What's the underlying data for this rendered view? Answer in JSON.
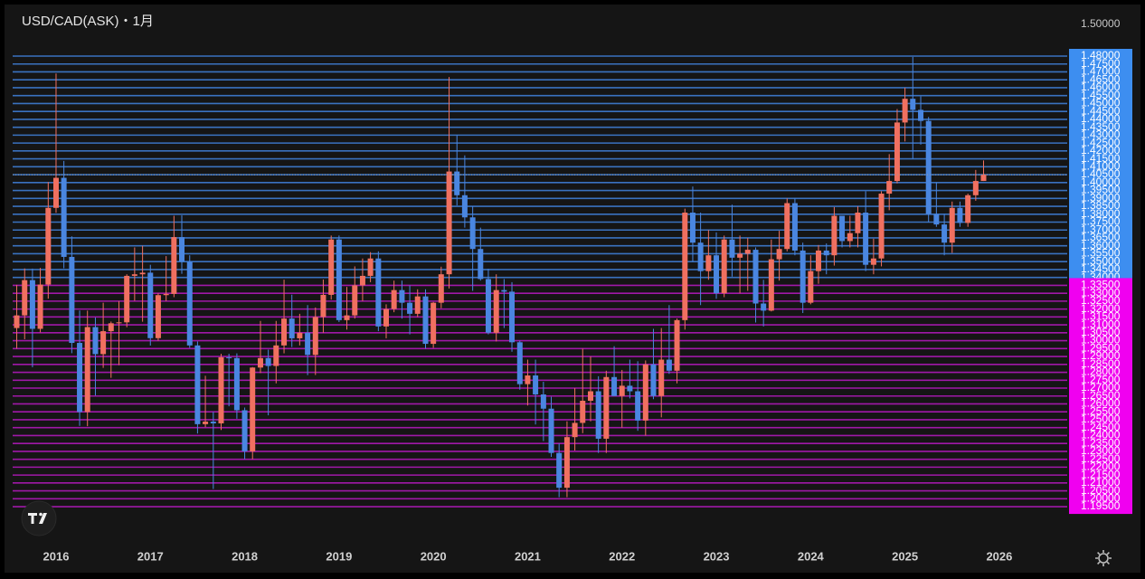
{
  "chart_data": {
    "type": "candlestick",
    "title": "USD/CAD(ASK)・1月",
    "up_color": "#f07060",
    "down_color": "#4a86e0",
    "xlim": [
      2015.54,
      2026.72
    ],
    "xticks": [
      2016,
      2017,
      2018,
      2019,
      2020,
      2021,
      2022,
      2023,
      2024,
      2025,
      2026
    ],
    "ylim": [
      1.1733,
      1.5109
    ],
    "yticks": [
      {
        "value": 1.5,
        "label": "1.50000"
      }
    ],
    "levels": [
      {
        "color": "#3a72c0",
        "box_color": "#3d8ef0",
        "ticks": [
          {
            "value": 1.34,
            "label": "1.34000"
          },
          {
            "value": 1.345,
            "label": "1.34500"
          },
          {
            "value": 1.35,
            "label": "1.35000"
          },
          {
            "value": 1.355,
            "label": "1.35500"
          },
          {
            "value": 1.36,
            "label": "1.36000"
          },
          {
            "value": 1.365,
            "label": "1.36500"
          },
          {
            "value": 1.37,
            "label": "1.37000"
          },
          {
            "value": 1.375,
            "label": "1.37500"
          },
          {
            "value": 1.38,
            "label": "1.38000"
          },
          {
            "value": 1.385,
            "label": "1.38500"
          },
          {
            "value": 1.39,
            "label": "1.39000"
          },
          {
            "value": 1.395,
            "label": "1.39500"
          },
          {
            "value": 1.4,
            "label": "1.40000"
          },
          {
            "value": 1.405,
            "label": "1.40500"
          },
          {
            "value": 1.41,
            "label": "1.41000"
          },
          {
            "value": 1.415,
            "label": "1.41500"
          },
          {
            "value": 1.42,
            "label": "1.42000"
          },
          {
            "value": 1.425,
            "label": "1.42500"
          },
          {
            "value": 1.43,
            "label": "1.43000"
          },
          {
            "value": 1.435,
            "label": "1.43500"
          },
          {
            "value": 1.44,
            "label": "1.44000"
          },
          {
            "value": 1.445,
            "label": "1.44500"
          },
          {
            "value": 1.45,
            "label": "1.45000"
          },
          {
            "value": 1.455,
            "label": "1.45500"
          },
          {
            "value": 1.46,
            "label": "1.46000"
          },
          {
            "value": 1.465,
            "label": "1.46500"
          },
          {
            "value": 1.47,
            "label": "1.47000"
          },
          {
            "value": 1.475,
            "label": "1.47500"
          },
          {
            "value": 1.48,
            "label": "1.48000"
          }
        ]
      },
      {
        "color": "#a018a8",
        "box_color": "#f000f0",
        "ticks": [
          {
            "value": 1.195,
            "label": "1.19500"
          },
          {
            "value": 1.2,
            "label": "1.20000"
          },
          {
            "value": 1.205,
            "label": "1.20500"
          },
          {
            "value": 1.21,
            "label": "1.21000"
          },
          {
            "value": 1.215,
            "label": "1.21500"
          },
          {
            "value": 1.22,
            "label": "1.22000"
          },
          {
            "value": 1.225,
            "label": "1.22500"
          },
          {
            "value": 1.23,
            "label": "1.23000"
          },
          {
            "value": 1.235,
            "label": "1.23500"
          },
          {
            "value": 1.24,
            "label": "1.24000"
          },
          {
            "value": 1.245,
            "label": "1.24500"
          },
          {
            "value": 1.25,
            "label": "1.25000"
          },
          {
            "value": 1.255,
            "label": "1.25500"
          },
          {
            "value": 1.26,
            "label": "1.26000"
          },
          {
            "value": 1.265,
            "label": "1.26500"
          },
          {
            "value": 1.27,
            "label": "1.27000"
          },
          {
            "value": 1.275,
            "label": "1.27500"
          },
          {
            "value": 1.28,
            "label": "1.28000"
          },
          {
            "value": 1.285,
            "label": "1.28500"
          },
          {
            "value": 1.29,
            "label": "1.29000"
          },
          {
            "value": 1.295,
            "label": "1.29500"
          },
          {
            "value": 1.3,
            "label": "1.30000"
          },
          {
            "value": 1.305,
            "label": "1.30500"
          },
          {
            "value": 1.31,
            "label": "1.31000"
          },
          {
            "value": 1.315,
            "label": "1.31500"
          },
          {
            "value": 1.32,
            "label": "1.32000"
          },
          {
            "value": 1.325,
            "label": "1.32500"
          },
          {
            "value": 1.33,
            "label": "1.33000"
          },
          {
            "value": 1.335,
            "label": "1.33500"
          }
        ]
      }
    ],
    "x": [
      2015.583,
      2015.667,
      2015.75,
      2015.833,
      2015.917,
      2016,
      2016.083,
      2016.167,
      2016.25,
      2016.333,
      2016.417,
      2016.5,
      2016.583,
      2016.667,
      2016.75,
      2016.833,
      2016.917,
      2017,
      2017.083,
      2017.167,
      2017.25,
      2017.333,
      2017.417,
      2017.5,
      2017.583,
      2017.667,
      2017.75,
      2017.833,
      2017.917,
      2018,
      2018.083,
      2018.167,
      2018.25,
      2018.333,
      2018.417,
      2018.5,
      2018.583,
      2018.667,
      2018.75,
      2018.833,
      2018.917,
      2019,
      2019.083,
      2019.167,
      2019.25,
      2019.333,
      2019.417,
      2019.5,
      2019.583,
      2019.667,
      2019.75,
      2019.833,
      2019.917,
      2020,
      2020.083,
      2020.167,
      2020.25,
      2020.333,
      2020.417,
      2020.5,
      2020.583,
      2020.667,
      2020.75,
      2020.833,
      2020.917,
      2021,
      2021.083,
      2021.167,
      2021.25,
      2021.333,
      2021.417,
      2021.5,
      2021.583,
      2021.667,
      2021.75,
      2021.833,
      2021.917,
      2022,
      2022.083,
      2022.167,
      2022.25,
      2022.333,
      2022.417,
      2022.5,
      2022.583,
      2022.667,
      2022.75,
      2022.833,
      2022.917,
      2023,
      2023.083,
      2023.167,
      2023.25,
      2023.333,
      2023.417,
      2023.5,
      2023.583,
      2023.667,
      2023.75,
      2023.833,
      2023.917,
      2024,
      2024.083,
      2024.167,
      2024.25,
      2024.333,
      2024.417,
      2024.5,
      2024.583,
      2024.667,
      2024.75,
      2024.833,
      2024.917,
      2025,
      2025.083,
      2025.167,
      2025.25,
      2025.333,
      2025.417,
      2025.5,
      2025.583,
      2025.667,
      2025.75,
      2025.833
    ],
    "open": [
      1.308,
      1.316,
      1.3383,
      1.3075,
      1.3355,
      1.384,
      1.403,
      1.353,
      1.2986,
      1.2549,
      1.3086,
      1.2915,
      1.306,
      1.311,
      1.3116,
      1.341,
      1.342,
      1.343,
      1.3016,
      1.3288,
      1.3296,
      1.3655,
      1.35,
      1.297,
      1.2472,
      1.2488,
      1.2477,
      1.2895,
      1.289,
      1.256,
      1.23,
      1.283,
      1.289,
      1.284,
      1.297,
      1.314,
      1.3015,
      1.305,
      1.291,
      1.315,
      1.329,
      1.364,
      1.313,
      1.316,
      1.335,
      1.341,
      1.352,
      1.309,
      1.32,
      1.332,
      1.324,
      1.317,
      1.328,
      1.298,
      1.324,
      1.342,
      1.407,
      1.392,
      1.378,
      1.358,
      1.339,
      1.305,
      1.332,
      1.331,
      1.299,
      1.2725,
      1.278,
      1.266,
      1.257,
      1.229,
      1.207,
      1.239,
      1.248,
      1.262,
      1.268,
      1.238,
      1.277,
      1.265,
      1.2715,
      1.268,
      1.2495,
      1.285,
      1.265,
      1.288,
      1.281,
      1.313,
      1.381,
      1.362,
      1.344,
      1.354,
      1.33,
      1.364,
      1.3525,
      1.355,
      1.3575,
      1.3235,
      1.319,
      1.3515,
      1.358,
      1.387,
      1.357,
      1.324,
      1.344,
      1.357,
      1.354,
      1.379,
      1.363,
      1.368,
      1.381,
      1.348,
      1.352,
      1.393,
      1.401,
      1.438,
      1.453,
      1.446,
      1.439,
      1.38,
      1.3735,
      1.362,
      1.384,
      1.3745,
      1.392,
      1.401
    ],
    "high": [
      1.3353,
      1.3457,
      1.3456,
      1.346,
      1.4003,
      1.469,
      1.4137,
      1.366,
      1.3191,
      1.319,
      1.3147,
      1.324,
      1.3121,
      1.325,
      1.342,
      1.359,
      1.36,
      1.348,
      1.33,
      1.3535,
      1.379,
      1.3793,
      1.354,
      1.2995,
      1.2778,
      1.255,
      1.2917,
      1.2917,
      1.292,
      1.2577,
      1.2833,
      1.3125,
      1.2943,
      1.3125,
      1.3386,
      1.3291,
      1.317,
      1.3225,
      1.321,
      1.3387,
      1.3665,
      1.3665,
      1.334,
      1.347,
      1.352,
      1.356,
      1.3565,
      1.323,
      1.338,
      1.338,
      1.335,
      1.3325,
      1.3325,
      1.3245,
      1.3468,
      1.4668,
      1.43,
      1.4172,
      1.385,
      1.3715,
      1.3455,
      1.342,
      1.339,
      1.337,
      1.3,
      1.288,
      1.288,
      1.274,
      1.2645,
      1.235,
      1.249,
      1.27,
      1.295,
      1.29,
      1.2775,
      1.281,
      1.2965,
      1.2815,
      1.288,
      1.287,
      1.2875,
      1.3075,
      1.308,
      1.3225,
      1.314,
      1.3835,
      1.3975,
      1.381,
      1.37,
      1.3685,
      1.3665,
      1.386,
      1.3665,
      1.365,
      1.359,
      1.3385,
      1.364,
      1.3695,
      1.39,
      1.39,
      1.362,
      1.354,
      1.3605,
      1.3615,
      1.3845,
      1.379,
      1.379,
      1.385,
      1.3945,
      1.3645,
      1.3945,
      1.418,
      1.4465,
      1.46,
      1.4795,
      1.4545,
      1.4415,
      1.4,
      1.38,
      1.388,
      1.388,
      1.393,
      1.408,
      1.414
    ],
    "low": [
      1.295,
      1.3009,
      1.2832,
      1.3052,
      1.3266,
      1.3809,
      1.3458,
      1.2921,
      1.2461,
      1.2459,
      1.2653,
      1.2828,
      1.2765,
      1.2845,
      1.3085,
      1.3252,
      1.312,
      1.2969,
      1.3,
      1.325,
      1.3275,
      1.3423,
      1.2955,
      1.2413,
      1.2453,
      1.2062,
      1.2435,
      1.2585,
      1.2506,
      1.225,
      1.225,
      1.2795,
      1.2528,
      1.273,
      1.292,
      1.296,
      1.297,
      1.2782,
      1.2783,
      1.305,
      1.326,
      1.3118,
      1.307,
      1.314,
      1.325,
      1.337,
      1.306,
      1.3015,
      1.318,
      1.314,
      1.304,
      1.315,
      1.295,
      1.2955,
      1.3205,
      1.333,
      1.3855,
      1.3715,
      1.3315,
      1.338,
      1.304,
      1.2995,
      1.308,
      1.293,
      1.269,
      1.259,
      1.247,
      1.2365,
      1.2265,
      1.201,
      1.201,
      1.2305,
      1.2415,
      1.249,
      1.229,
      1.229,
      1.265,
      1.245,
      1.2635,
      1.243,
      1.24,
      1.263,
      1.2515,
      1.279,
      1.273,
      1.307,
      1.35,
      1.3225,
      1.3385,
      1.3265,
      1.3275,
      1.3405,
      1.33,
      1.3315,
      1.3115,
      1.309,
      1.3185,
      1.338,
      1.3565,
      1.354,
      1.3175,
      1.323,
      1.336,
      1.342,
      1.3475,
      1.359,
      1.359,
      1.359,
      1.344,
      1.342,
      1.347,
      1.3825,
      1.3995,
      1.426,
      1.415,
      1.424,
      1.375,
      1.372,
      1.354,
      1.3555,
      1.372,
      1.372,
      1.3885,
      1.401
    ],
    "close": [
      1.316,
      1.3383,
      1.3075,
      1.3355,
      1.384,
      1.403,
      1.353,
      1.2986,
      1.2549,
      1.3086,
      1.2915,
      1.306,
      1.311,
      1.3116,
      1.341,
      1.342,
      1.343,
      1.3016,
      1.3288,
      1.3296,
      1.3655,
      1.35,
      1.297,
      1.2472,
      1.2488,
      1.2477,
      1.2895,
      1.289,
      1.256,
      1.23,
      1.283,
      1.289,
      1.284,
      1.297,
      1.314,
      1.3015,
      1.305,
      1.291,
      1.315,
      1.329,
      1.364,
      1.313,
      1.316,
      1.335,
      1.341,
      1.352,
      1.309,
      1.32,
      1.332,
      1.324,
      1.317,
      1.328,
      1.298,
      1.324,
      1.342,
      1.407,
      1.392,
      1.378,
      1.358,
      1.339,
      1.305,
      1.332,
      1.331,
      1.299,
      1.2725,
      1.278,
      1.266,
      1.257,
      1.229,
      1.207,
      1.239,
      1.248,
      1.262,
      1.268,
      1.238,
      1.277,
      1.265,
      1.2715,
      1.268,
      1.2495,
      1.285,
      1.265,
      1.288,
      1.281,
      1.313,
      1.381,
      1.362,
      1.344,
      1.354,
      1.33,
      1.364,
      1.3525,
      1.355,
      1.3575,
      1.3235,
      1.319,
      1.3515,
      1.358,
      1.387,
      1.357,
      1.324,
      1.344,
      1.357,
      1.354,
      1.379,
      1.363,
      1.368,
      1.381,
      1.348,
      1.352,
      1.393,
      1.401,
      1.438,
      1.453,
      1.446,
      1.439,
      1.38,
      1.3735,
      1.362,
      1.384,
      1.3745,
      1.392,
      1.401,
      1.405
    ]
  }
}
